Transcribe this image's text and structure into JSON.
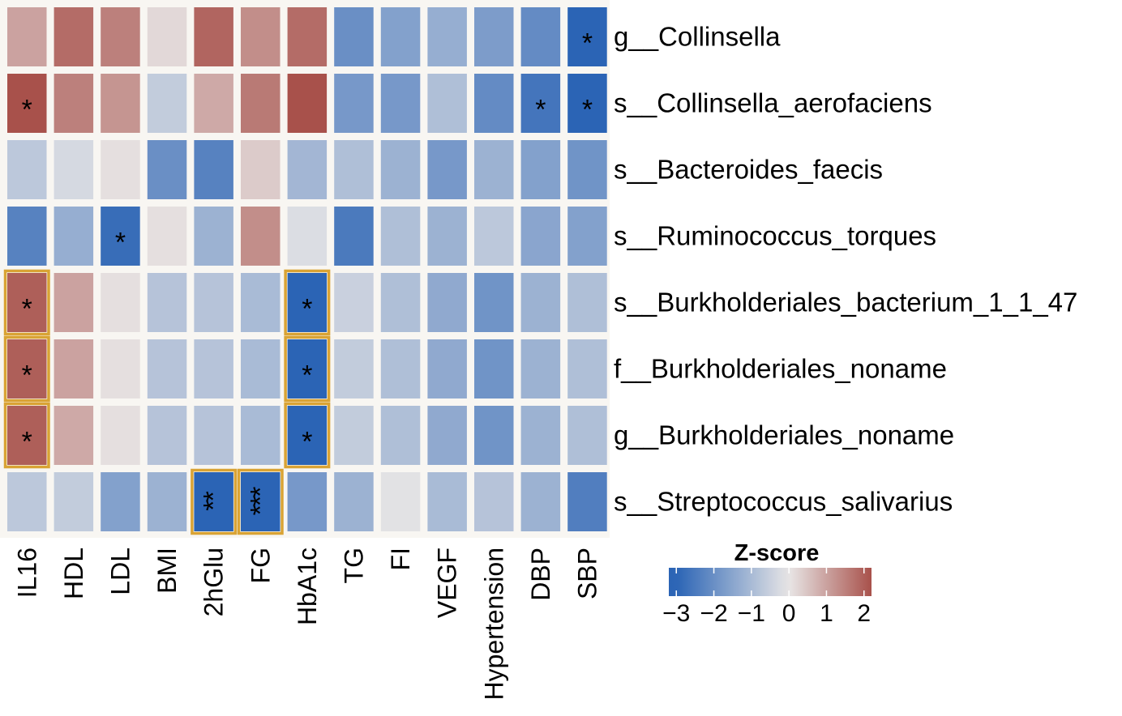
{
  "chart_data": {
    "type": "heatmap",
    "columns": [
      "IL16",
      "HDL",
      "LDL",
      "BMI",
      "2hGlu",
      "FG",
      "HbA1c",
      "TG",
      "FI",
      "VEGF",
      "Hypertension",
      "DBP",
      "SBP"
    ],
    "rows": [
      "g__Collinsella",
      "s__Collinsella_aerofaciens",
      "s__Bacteroides_faecis",
      "s__Ruminococcus_torques",
      "s__Burkholderiales_bacterium_1_1_47",
      "f__Burkholderiales_noname",
      "g__Burkholderiales_noname",
      "s__Streptococcus_salivarius"
    ],
    "values": [
      [
        1.0,
        1.8,
        1.5,
        0.2,
        1.9,
        1.3,
        1.8,
        -2.0,
        -1.6,
        -1.3,
        -1.7,
        -2.1,
        -3.0
      ],
      [
        2.2,
        1.5,
        1.2,
        -0.6,
        0.9,
        1.6,
        2.3,
        -1.8,
        -1.8,
        -0.9,
        -2.1,
        -2.6,
        -3.0
      ],
      [
        -0.7,
        -0.3,
        0.1,
        -2.0,
        -2.3,
        0.4,
        -1.1,
        -0.9,
        -1.2,
        -1.8,
        -1.2,
        -1.6,
        -1.9
      ],
      [
        -2.3,
        -1.3,
        -2.8,
        0.1,
        -1.2,
        1.3,
        -0.2,
        -2.5,
        -0.9,
        -1.2,
        -0.7,
        -1.5,
        -1.6
      ],
      [
        2.0,
        1.0,
        0.1,
        -0.8,
        -0.8,
        -1.0,
        -3.0,
        -0.5,
        -0.9,
        -1.4,
        -1.9,
        -1.2,
        -0.9
      ],
      [
        2.0,
        1.0,
        0.1,
        -0.8,
        -0.8,
        -1.0,
        -3.0,
        -0.6,
        -0.9,
        -1.4,
        -1.9,
        -1.2,
        -0.9
      ],
      [
        2.0,
        0.9,
        0.1,
        -0.8,
        -0.8,
        -1.0,
        -3.0,
        -0.6,
        -0.9,
        -1.4,
        -1.9,
        -1.2,
        -0.9
      ],
      [
        -0.7,
        -0.6,
        -1.6,
        -1.2,
        -3.1,
        -3.1,
        -1.8,
        -1.2,
        -0.1,
        -1.0,
        -0.8,
        -1.2,
        -2.4
      ]
    ],
    "annotations": [
      [
        "",
        "",
        "",
        "",
        "",
        "",
        "",
        "",
        "",
        "",
        "",
        "",
        "*"
      ],
      [
        "*",
        "",
        "",
        "",
        "",
        "",
        "",
        "",
        "",
        "",
        "",
        "*",
        "*"
      ],
      [
        "",
        "",
        "",
        "",
        "",
        "",
        "",
        "",
        "",
        "",
        "",
        "",
        ""
      ],
      [
        "",
        "",
        "*",
        "",
        "",
        "",
        "",
        "",
        "",
        "",
        "",
        "",
        ""
      ],
      [
        "*",
        "",
        "",
        "",
        "",
        "",
        "*",
        "",
        "",
        "",
        "",
        "",
        ""
      ],
      [
        "*",
        "",
        "",
        "",
        "",
        "",
        "*",
        "",
        "",
        "",
        "",
        "",
        ""
      ],
      [
        "*",
        "",
        "",
        "",
        "",
        "",
        "*",
        "",
        "",
        "",
        "",
        "",
        ""
      ],
      [
        "",
        "",
        "",
        "",
        "**",
        "***",
        "",
        "",
        "",
        "",
        "",
        "",
        ""
      ]
    ],
    "highlighted_cells": [
      [
        4,
        0
      ],
      [
        5,
        0
      ],
      [
        6,
        0
      ],
      [
        4,
        6
      ],
      [
        5,
        6
      ],
      [
        6,
        6
      ],
      [
        7,
        4
      ],
      [
        7,
        5
      ]
    ],
    "legend": {
      "title": "Z-score",
      "ticks": [
        -3,
        -2,
        -1,
        0,
        1,
        2
      ],
      "tick_labels": [
        "−3",
        "−2",
        "−1",
        "0",
        "1",
        "2"
      ],
      "range": [
        -3.2,
        2.2
      ]
    },
    "colors": {
      "low": "#2b64b5",
      "mid": "#e8e6e6",
      "high": "#a8514b",
      "highlight_border": "#d9a334",
      "panel_background": "#f8f6f2",
      "star": "#ffffff"
    }
  }
}
